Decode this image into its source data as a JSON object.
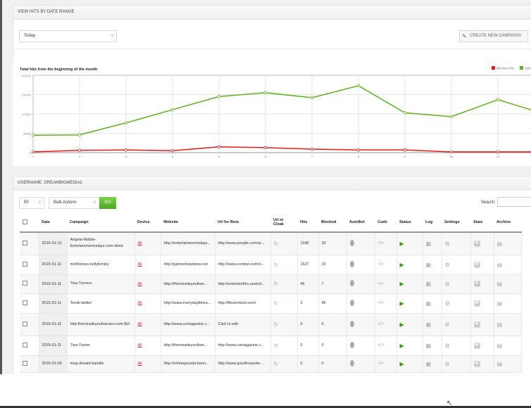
{
  "range_panel": {
    "title": "VIEW HITS BY DATE RANGE",
    "date_range": "Today",
    "create_button": "CREATE NEW CAMPAIGN"
  },
  "chart_data": {
    "type": "line",
    "title": "Total hits from the beginning of the month",
    "x": [
      1,
      2,
      3,
      4,
      5,
      6,
      7,
      8,
      9,
      10,
      11,
      12
    ],
    "yticks": [
      "0",
      "50000",
      "100000",
      "150000",
      "200000"
    ],
    "ylim": [
      0,
      200000
    ],
    "grid": true,
    "legend": "top-right",
    "series": [
      {
        "name": "Blocked Hits",
        "color": "#e21b1b",
        "values": [
          2000,
          6000,
          7000,
          5000,
          15000,
          13000,
          9000,
          7000,
          7000,
          2000,
          2000,
          2000
        ]
      },
      {
        "name": "Valid Hits",
        "color": "#5cb21a",
        "values": [
          45000,
          46000,
          77000,
          111000,
          145000,
          155000,
          142000,
          173000,
          103000,
          93000,
          137000,
          100000
        ]
      }
    ]
  },
  "table_panel": {
    "title": "USERNAME: DREAMBIGMEDIA2",
    "page_size": "50",
    "bulk_actions": "Bulk Actions",
    "go": "GO",
    "search_label": "Search:",
    "search_value": "",
    "columns": [
      "",
      "Date",
      "Campaign",
      "Device",
      "Website",
      "Url for Bots",
      "Url to Cloak",
      "Hits",
      "Blocked",
      "AutoBot",
      "Code",
      "Status",
      "Log",
      "Settings",
      "Stats",
      "Archive"
    ],
    "rows": [
      {
        "date": "2015-01-12",
        "campaign": "Angela-Mobile-Entertainmentrelays-com-demi-",
        "device": "All",
        "website": "http://entertainmentrelays...",
        "bots": "http://www.people.com/ar...",
        "hits": "1168",
        "blocked": "33"
      },
      {
        "date": "2015-01-11",
        "campaign": "mellhomas-kellylemley",
        "device": "All",
        "website": "http://gameshownews.net",
        "bots": "http://www.eonline.com/n...",
        "hits": "1527",
        "blocked": "33"
      },
      {
        "date": "2015-01-11",
        "campaign": "Tina-Turners",
        "device": "All",
        "website": "http://themiradeyoutlser...",
        "bots": "http://entertainthis.usatod...",
        "hits": "46",
        "blocked": "7"
      },
      {
        "date": "2015-01-11",
        "campaign": "Tomik-twitter",
        "device": "All",
        "website": "http://www.everydayfitnes...",
        "bots": "http://fitnworkout.com/",
        "hits": "3",
        "blocked": "46"
      },
      {
        "date": "2015-01-11",
        "campaign": "http-themiradeyoutlserarn-com-fb2-",
        "device": "All",
        "website": "http://www.usmagazine.c...",
        "bots": "Click to edit",
        "hits": "0",
        "blocked": "0"
      },
      {
        "date": "2015-01-11",
        "campaign": "Tina-Turner",
        "device": "All",
        "website": "http://themiradeyoutlser...",
        "bots": "http://www.usmagazine.c...",
        "hits": "0",
        "blocked": "0"
      },
      {
        "date": "2015-01-09",
        "campaign": "meg-donald-kamille",
        "device": "All",
        "website": "http://onlinegossipchann...",
        "bots": "http://www.goodhouseke...",
        "hits": "0",
        "blocked": "0"
      }
    ]
  }
}
